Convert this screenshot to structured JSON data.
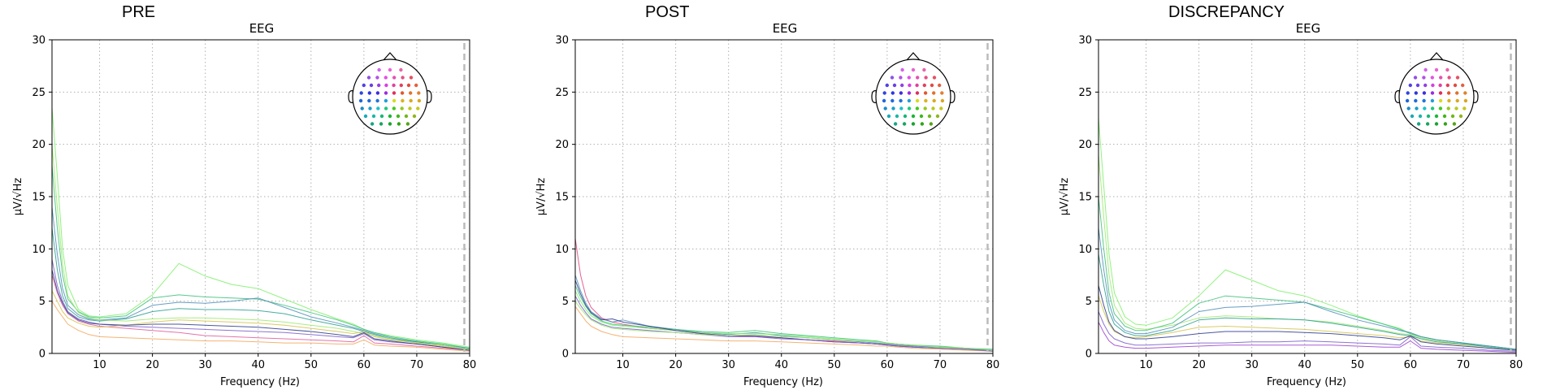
{
  "figure": {
    "panels": [
      {
        "title": "PRE",
        "subtitle": "EEG",
        "ylabel": "μV/√Hz",
        "xlabel": "Frequency (Hz)"
      },
      {
        "title": "POST",
        "subtitle": "EEG",
        "ylabel": "μV/√Hz",
        "xlabel": "Frequency (Hz)"
      },
      {
        "title": "DISCREPANCY",
        "subtitle": "EEG",
        "ylabel": "μV/√Hz",
        "xlabel": "Frequency (Hz)"
      }
    ]
  },
  "chart_data": [
    {
      "type": "line",
      "title": "PRE",
      "subtitle": "EEG",
      "xlabel": "Frequency (Hz)",
      "ylabel": "μV/√Hz",
      "xlim": [
        1,
        80
      ],
      "ylim": [
        0,
        30
      ],
      "xticks": [
        10,
        20,
        30,
        40,
        50,
        60,
        70,
        80
      ],
      "yticks": [
        0,
        5,
        10,
        15,
        20,
        25,
        30
      ],
      "grid": true,
      "vline_x": 79,
      "sensor_inset": "top-right",
      "x": [
        1,
        2,
        3,
        4,
        6,
        8,
        10,
        15,
        20,
        25,
        30,
        35,
        40,
        45,
        50,
        55,
        58,
        60,
        62,
        65,
        70,
        75,
        80
      ],
      "series": [
        {
          "color": "#7ef06a",
          "values": [
            23.5,
            17,
            10,
            6.5,
            4.2,
            3.6,
            3.5,
            3.8,
            5.6,
            8.6,
            7.4,
            6.6,
            6.2,
            5.2,
            4.2,
            3.3,
            2.8,
            2.3,
            2.0,
            1.7,
            1.3,
            1.0,
            0.6
          ]
        },
        {
          "color": "#3bbf7a",
          "values": [
            18,
            12,
            7.5,
            5.2,
            4.0,
            3.5,
            3.4,
            3.6,
            5.3,
            5.6,
            5.4,
            5.3,
            5.2,
            4.6,
            3.9,
            3.2,
            2.7,
            2.3,
            2.0,
            1.6,
            1.2,
            0.9,
            0.5
          ]
        },
        {
          "color": "#4c8db8",
          "values": [
            14,
            9.5,
            6.2,
            4.6,
            3.7,
            3.3,
            3.2,
            3.4,
            4.6,
            4.9,
            4.8,
            5.0,
            5.3,
            4.4,
            3.5,
            2.9,
            2.5,
            2.2,
            1.9,
            1.5,
            1.1,
            0.8,
            0.5
          ]
        },
        {
          "color": "#2a9d8f",
          "values": [
            12,
            8,
            5.5,
            4.3,
            3.5,
            3.2,
            3.1,
            3.3,
            4.0,
            4.3,
            4.2,
            4.2,
            4.1,
            3.8,
            3.2,
            2.7,
            2.4,
            2.1,
            1.8,
            1.4,
            1.1,
            0.8,
            0.4
          ]
        },
        {
          "color": "#9be86b",
          "values": [
            20,
            14,
            8.5,
            5.5,
            3.9,
            3.4,
            3.2,
            3.1,
            3.3,
            3.4,
            3.4,
            3.3,
            3.2,
            3.0,
            2.7,
            2.4,
            2.1,
            1.9,
            1.7,
            1.4,
            1.0,
            0.8,
            0.4
          ]
        },
        {
          "color": "#7a5cc9",
          "values": [
            9,
            6.5,
            5.0,
            4.0,
            3.3,
            3.0,
            2.8,
            2.6,
            2.5,
            2.4,
            2.3,
            2.2,
            2.1,
            2.0,
            1.8,
            1.6,
            1.5,
            1.9,
            1.3,
            1.1,
            0.9,
            0.6,
            0.3
          ]
        },
        {
          "color": "#e05a9a",
          "values": [
            7.5,
            5.8,
            4.6,
            3.8,
            3.1,
            2.8,
            2.6,
            2.4,
            2.2,
            2.0,
            1.7,
            1.6,
            1.5,
            1.4,
            1.3,
            1.2,
            1.1,
            1.7,
            1.0,
            0.9,
            0.7,
            0.5,
            0.3
          ]
        },
        {
          "color": "#f2a65a",
          "values": [
            5.0,
            4.2,
            3.5,
            2.8,
            2.2,
            1.8,
            1.6,
            1.5,
            1.4,
            1.3,
            1.2,
            1.2,
            1.1,
            1.0,
            1.0,
            0.9,
            0.9,
            1.3,
            0.8,
            0.7,
            0.6,
            0.4,
            0.2
          ]
        },
        {
          "color": "#d4c24a",
          "values": [
            6.0,
            5.0,
            4.0,
            3.4,
            2.9,
            2.6,
            2.5,
            2.7,
            3.0,
            3.2,
            3.1,
            3.0,
            2.9,
            2.7,
            2.4,
            2.1,
            1.9,
            2.1,
            1.6,
            1.3,
            1.0,
            0.7,
            0.3
          ]
        },
        {
          "color": "#2b3a8c",
          "values": [
            8,
            6.0,
            4.8,
            3.9,
            3.2,
            2.9,
            2.8,
            2.7,
            2.8,
            2.8,
            2.7,
            2.6,
            2.5,
            2.3,
            2.1,
            1.8,
            1.6,
            2.0,
            1.4,
            1.2,
            0.9,
            0.6,
            0.3
          ]
        }
      ]
    },
    {
      "type": "line",
      "title": "POST",
      "subtitle": "EEG",
      "xlabel": "Frequency (Hz)",
      "ylabel": "μV/√Hz",
      "xlim": [
        1,
        80
      ],
      "ylim": [
        0,
        30
      ],
      "xticks": [
        10,
        20,
        30,
        40,
        50,
        60,
        70,
        80
      ],
      "yticks": [
        0,
        5,
        10,
        15,
        20,
        25,
        30
      ],
      "grid": true,
      "vline_x": 79,
      "sensor_inset": "top-right",
      "x": [
        1,
        2,
        3,
        4,
        6,
        8,
        10,
        15,
        20,
        25,
        30,
        35,
        40,
        45,
        50,
        55,
        58,
        60,
        62,
        65,
        70,
        75,
        80
      ],
      "series": [
        {
          "color": "#e0457a",
          "values": [
            11,
            7.5,
            5.5,
            4.4,
            3.4,
            3.0,
            2.8,
            2.4,
            2.2,
            1.9,
            1.7,
            1.6,
            1.5,
            1.3,
            1.2,
            1.0,
            0.9,
            0.9,
            0.8,
            0.7,
            0.6,
            0.5,
            0.3
          ]
        },
        {
          "color": "#4c8db8",
          "values": [
            7.5,
            6.0,
            4.8,
            4.0,
            3.3,
            3.0,
            3.2,
            2.6,
            2.3,
            2.0,
            1.8,
            2.0,
            1.7,
            1.5,
            1.3,
            1.1,
            1.0,
            0.9,
            0.8,
            0.7,
            0.6,
            0.5,
            0.3
          ]
        },
        {
          "color": "#7ef06a",
          "values": [
            6.0,
            5.0,
            4.2,
            3.6,
            3.0,
            2.7,
            2.6,
            2.4,
            2.2,
            2.0,
            1.9,
            1.9,
            1.8,
            1.6,
            1.4,
            1.2,
            1.1,
            1.0,
            0.9,
            0.8,
            0.6,
            0.5,
            0.3
          ]
        },
        {
          "color": "#3bbf7a",
          "values": [
            6.5,
            5.4,
            4.5,
            3.8,
            3.1,
            2.8,
            2.7,
            2.5,
            2.3,
            2.1,
            2.0,
            2.2,
            1.9,
            1.7,
            1.5,
            1.3,
            1.2,
            1.0,
            0.9,
            0.8,
            0.7,
            0.5,
            0.4
          ]
        },
        {
          "color": "#2b3a8c",
          "values": [
            7.0,
            5.7,
            4.6,
            3.9,
            3.2,
            3.3,
            3.0,
            2.6,
            2.2,
            1.9,
            1.7,
            1.7,
            1.5,
            1.3,
            1.1,
            1.0,
            0.9,
            0.8,
            0.7,
            0.6,
            0.5,
            0.4,
            0.3
          ]
        },
        {
          "color": "#f2a65a",
          "values": [
            4.5,
            3.8,
            3.1,
            2.6,
            2.1,
            1.8,
            1.6,
            1.5,
            1.4,
            1.3,
            1.2,
            1.2,
            1.1,
            1.0,
            0.9,
            0.8,
            0.7,
            0.7,
            0.6,
            0.5,
            0.4,
            0.3,
            0.2
          ]
        },
        {
          "color": "#7a5cc9",
          "values": [
            5.5,
            4.6,
            3.9,
            3.3,
            2.8,
            2.5,
            2.4,
            2.2,
            2.0,
            1.8,
            1.6,
            1.6,
            1.4,
            1.3,
            1.1,
            1.0,
            0.9,
            0.8,
            0.7,
            0.6,
            0.5,
            0.4,
            0.2
          ]
        },
        {
          "color": "#9be86b",
          "values": [
            5.0,
            4.3,
            3.7,
            3.2,
            2.7,
            2.4,
            2.3,
            2.1,
            2.0,
            1.8,
            1.7,
            1.8,
            1.6,
            1.5,
            1.3,
            1.2,
            1.1,
            1.0,
            0.9,
            0.8,
            0.6,
            0.5,
            0.3
          ]
        }
      ]
    },
    {
      "type": "line",
      "title": "DISCREPANCY",
      "subtitle": "EEG",
      "xlabel": "Frequency (Hz)",
      "ylabel": "μV/√Hz",
      "xlim": [
        1,
        80
      ],
      "ylim": [
        0,
        30
      ],
      "xticks": [
        10,
        20,
        30,
        40,
        50,
        60,
        70,
        80
      ],
      "yticks": [
        0,
        5,
        10,
        15,
        20,
        25,
        30
      ],
      "grid": true,
      "vline_x": 79,
      "sensor_inset": "top-right",
      "x": [
        1,
        2,
        3,
        4,
        6,
        8,
        10,
        15,
        20,
        25,
        30,
        35,
        40,
        45,
        50,
        55,
        58,
        60,
        62,
        65,
        70,
        75,
        80
      ],
      "series": [
        {
          "color": "#7ef06a",
          "values": [
            22.5,
            16,
            9.5,
            5.8,
            3.5,
            2.8,
            2.7,
            3.4,
            5.5,
            8.0,
            7.0,
            6.0,
            5.5,
            4.6,
            3.6,
            2.8,
            2.4,
            1.9,
            1.6,
            1.3,
            1.0,
            0.7,
            0.4
          ]
        },
        {
          "color": "#9be86b",
          "values": [
            19,
            13,
            7.5,
            4.6,
            2.9,
            2.4,
            2.3,
            2.7,
            3.4,
            3.6,
            3.5,
            3.3,
            3.2,
            3.0,
            2.6,
            2.2,
            1.9,
            1.8,
            1.5,
            1.2,
            0.9,
            0.7,
            0.4
          ]
        },
        {
          "color": "#3bbf7a",
          "values": [
            15,
            10,
            5.8,
            3.8,
            2.6,
            2.2,
            2.2,
            2.9,
            4.8,
            5.5,
            5.3,
            5.1,
            4.9,
            4.2,
            3.5,
            2.8,
            2.3,
            1.9,
            1.6,
            1.3,
            1.0,
            0.7,
            0.4
          ]
        },
        {
          "color": "#4c8db8",
          "values": [
            12,
            8,
            4.8,
            3.2,
            2.2,
            1.9,
            1.9,
            2.5,
            4.0,
            4.4,
            4.5,
            4.7,
            4.9,
            4.0,
            3.2,
            2.6,
            2.2,
            2.0,
            1.6,
            1.3,
            1.0,
            0.7,
            0.4
          ]
        },
        {
          "color": "#2a9d8f",
          "values": [
            9.5,
            6.5,
            4.0,
            2.8,
            2.0,
            1.7,
            1.7,
            2.2,
            3.2,
            3.4,
            3.3,
            3.3,
            3.2,
            2.9,
            2.5,
            2.1,
            1.8,
            1.7,
            1.4,
            1.1,
            0.9,
            0.6,
            0.3
          ]
        },
        {
          "color": "#d4c24a",
          "values": [
            5.5,
            4.0,
            2.8,
            2.1,
            1.6,
            1.5,
            1.6,
            2.0,
            2.5,
            2.6,
            2.5,
            2.4,
            2.3,
            2.1,
            1.9,
            1.7,
            1.5,
            1.6,
            1.2,
            1.0,
            0.8,
            0.5,
            0.3
          ]
        },
        {
          "color": "#7a5cc9",
          "values": [
            4.0,
            2.8,
            1.9,
            1.4,
            1.0,
            0.8,
            0.8,
            0.9,
            1.0,
            1.0,
            1.1,
            1.1,
            1.2,
            1.1,
            1.0,
            0.9,
            0.8,
            1.6,
            0.7,
            0.6,
            0.5,
            0.3,
            0.2
          ]
        },
        {
          "color": "#9a3fd0",
          "values": [
            3.0,
            2.0,
            1.2,
            0.8,
            0.6,
            0.5,
            0.5,
            0.6,
            0.7,
            0.8,
            0.8,
            0.8,
            0.8,
            0.8,
            0.7,
            0.6,
            0.6,
            1.2,
            0.5,
            0.4,
            0.3,
            0.2,
            0.1
          ]
        },
        {
          "color": "#2b3a8c",
          "values": [
            6.5,
            4.6,
            3.0,
            2.2,
            1.6,
            1.4,
            1.4,
            1.6,
            1.9,
            2.1,
            2.1,
            2.1,
            2.0,
            1.9,
            1.7,
            1.5,
            1.3,
            1.7,
            1.1,
            0.9,
            0.7,
            0.5,
            0.3
          ]
        }
      ]
    }
  ]
}
